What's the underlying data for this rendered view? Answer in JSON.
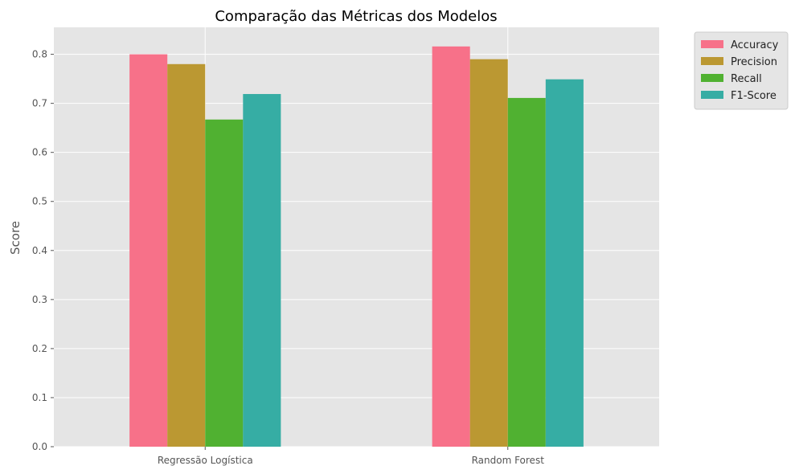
{
  "chart_data": {
    "type": "bar",
    "title": "Comparação das Métricas dos Modelos",
    "xlabel": "",
    "ylabel": "Score",
    "categories": [
      "Regressão Logística",
      "Random Forest"
    ],
    "series": [
      {
        "name": "Accuracy",
        "values": [
          0.8,
          0.816
        ]
      },
      {
        "name": "Precision",
        "values": [
          0.78,
          0.79
        ]
      },
      {
        "name": "Recall",
        "values": [
          0.667,
          0.711
        ]
      },
      {
        "name": "F1-Score",
        "values": [
          0.719,
          0.749
        ]
      }
    ],
    "ylim": [
      0,
      0.855
    ],
    "yticks": [
      "0.0",
      "0.1",
      "0.2",
      "0.3",
      "0.4",
      "0.5",
      "0.6",
      "0.7",
      "0.8"
    ],
    "grid": true,
    "legend_position": "outside-top-right",
    "colors": {
      "series": [
        "#f77189",
        "#bb9832",
        "#50b131",
        "#36ada4"
      ],
      "plot_background": "#e5e5e5",
      "grid": "#ffffff"
    }
  }
}
